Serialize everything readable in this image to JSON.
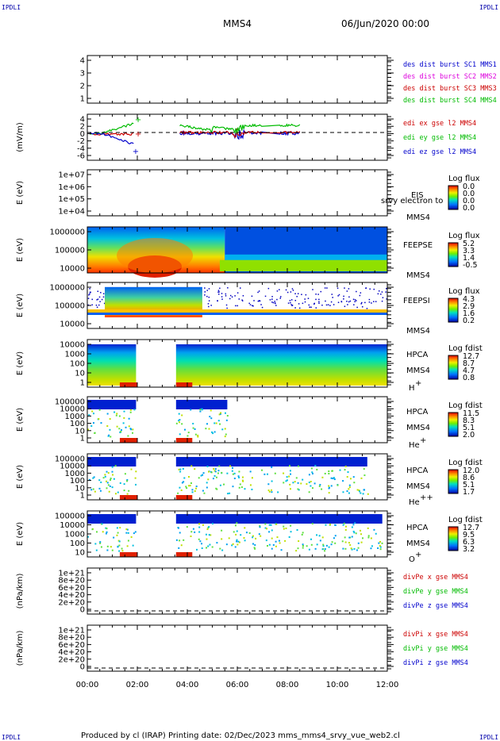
{
  "header": {
    "corner_label": "IPDLI",
    "mission": "MMS4",
    "start": "06/Jun/2020 00:00"
  },
  "footer": {
    "text": "Produced by cl (IRAP)   Printing date: 02/Dec/2023   mms_mms4_srvy_vue_web2.cl"
  },
  "colors": {
    "mms1": "#0000cc",
    "mms2": "#dd00dd",
    "mms3": "#cc0000",
    "mms4": "#00bb00",
    "x": "#cc0000",
    "y": "#00bb00",
    "z": "#0000cc"
  },
  "chart_data": {
    "type": "heatmap",
    "x_ticks": [
      "00:00",
      "02:00",
      "04:00",
      "06:00",
      "08:00",
      "10:00",
      "12:00"
    ],
    "xlim_hours": [
      0,
      12
    ],
    "panels": [
      {
        "type": "line",
        "ylabel": "",
        "yticks": [
          "4",
          "3",
          "2",
          "1"
        ],
        "legend": [
          {
            "text": "des dist burst SC1 MMS1",
            "color": "#0000cc"
          },
          {
            "text": "des dist burst SC2 MMS2",
            "color": "#dd00dd"
          },
          {
            "text": "des dist burst SC3 MMS3",
            "color": "#cc0000"
          },
          {
            "text": "des dist burst SC4 MMS4",
            "color": "#00bb00"
          }
        ]
      },
      {
        "type": "line",
        "ylabel": "(mV/m)",
        "yticks": [
          "4",
          "2",
          "0",
          "-2",
          "-4",
          "-6"
        ],
        "legend": [
          {
            "text": "edi ex gse l2 MMS4",
            "color": "#cc0000"
          },
          {
            "text": "edi ey gse l2 MMS4",
            "color": "#00bb00"
          },
          {
            "text": "edi ez gse l2 MMS4",
            "color": "#0000cc"
          }
        ]
      },
      {
        "type": "heatmap",
        "ylabel": "E (eV)",
        "yticks": [
          "1e+07",
          "1e+06",
          "1e+05",
          "1e+04"
        ],
        "instrument": [
          "EIS",
          "MMS4"
        ],
        "overlay": "srvy electron to",
        "cb_title": "Log flux",
        "cb_values": [
          "0.0",
          "0.0",
          "0.0",
          "0.0"
        ]
      },
      {
        "type": "heatmap",
        "ylabel": "E (eV)",
        "yticks": [
          "1000000",
          "100000",
          "10000"
        ],
        "instrument": [
          "FEEPSE",
          "MMS4"
        ],
        "cb_title": "Log flux",
        "cb_values": [
          "5.2",
          "3.3",
          "1.4",
          "-0.5"
        ]
      },
      {
        "type": "heatmap",
        "ylabel": "E (eV)",
        "yticks": [
          "1000000",
          "100000",
          "10000"
        ],
        "instrument": [
          "FEEPSI",
          "MMS4"
        ],
        "cb_title": "Log flux",
        "cb_values": [
          "4.3",
          "2.9",
          "1.6",
          "0.2"
        ]
      },
      {
        "type": "heatmap",
        "ylabel": "E (eV)",
        "yticks": [
          "10000",
          "1000",
          "100",
          "10",
          "1"
        ],
        "instrument": [
          "HPCA",
          "MMS4"
        ],
        "species": "H",
        "species_sup": "+",
        "cb_title": "Log fdist",
        "cb_values": [
          "12.7",
          "8.7",
          "4.7",
          "0.8"
        ]
      },
      {
        "type": "heatmap",
        "ylabel": "E (eV)",
        "yticks": [
          "100000",
          "10000",
          "1000",
          "100",
          "10",
          "1"
        ],
        "instrument": [
          "HPCA",
          "MMS4"
        ],
        "species": "He",
        "species_sup": "+",
        "cb_title": "Log fdist",
        "cb_values": [
          "11.5",
          "8.3",
          "5.1",
          "2.0"
        ]
      },
      {
        "type": "heatmap",
        "ylabel": "E (eV)",
        "yticks": [
          "100000",
          "10000",
          "1000",
          "100",
          "10",
          "1"
        ],
        "instrument": [
          "HPCA",
          "MMS4"
        ],
        "species": "He",
        "species_sup": "++",
        "cb_title": "Log fdist",
        "cb_values": [
          "12.0",
          "8.6",
          "5.1",
          "1.7"
        ]
      },
      {
        "type": "heatmap",
        "ylabel": "E (eV)",
        "yticks": [
          "100000",
          "10000",
          "1000",
          "100",
          "10"
        ],
        "instrument": [
          "HPCA",
          "MMS4"
        ],
        "species": "O",
        "species_sup": "+",
        "cb_title": "Log fdist",
        "cb_values": [
          "12.7",
          "9.5",
          "6.3",
          "3.2"
        ]
      },
      {
        "type": "line",
        "ylabel": "(nPa/km)",
        "yticks": [
          "1e+21",
          "8e+20",
          "6e+20",
          "4e+20",
          "2e+20",
          "0"
        ],
        "legend": [
          {
            "text": "divPe x gse MMS4",
            "color": "#cc0000"
          },
          {
            "text": "divPe y gse MMS4",
            "color": "#00bb00"
          },
          {
            "text": "divPe z gse MMS4",
            "color": "#0000cc"
          }
        ]
      },
      {
        "type": "line",
        "ylabel": "(nPa/km)",
        "yticks": [
          "1e+21",
          "8e+20",
          "6e+20",
          "4e+20",
          "2e+20",
          "0"
        ],
        "legend": [
          {
            "text": "divPi x gse MMS4",
            "color": "#cc0000"
          },
          {
            "text": "divPi y gse MMS4",
            "color": "#00bb00"
          },
          {
            "text": "divPi z gse MMS4",
            "color": "#0000cc"
          }
        ]
      }
    ]
  }
}
